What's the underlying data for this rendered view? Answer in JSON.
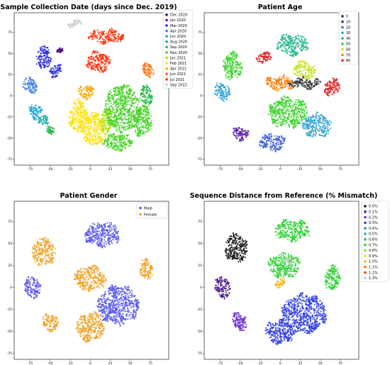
{
  "chart_data": [
    {
      "type": "scatter",
      "title": "Sample Collection Date (days since Dec. 2019)",
      "xlim": [
        -95,
        98
      ],
      "ylim": [
        -82,
        98
      ],
      "x_ticks": [
        "-75",
        "-50",
        "-25",
        "0",
        "25",
        "50",
        "75"
      ],
      "y_ticks": [
        "75",
        "50",
        "25",
        "0",
        "-25",
        "-50",
        "-75"
      ],
      "legend_position": "outside-right",
      "legend": [
        {
          "label": "Dec 2019",
          "color": "#4b0082"
        },
        {
          "label": "Jan 2020",
          "color": "#6a0dad"
        },
        {
          "label": "Mar 2020",
          "color": "#2a2ae0"
        },
        {
          "label": "Apr 2020",
          "color": "#3f7fe0"
        },
        {
          "label": "Jun 2020",
          "color": "#1fa3d8"
        },
        {
          "label": "Aug 2020",
          "color": "#18a8a0"
        },
        {
          "label": "Sep 2020",
          "color": "#21b84a"
        },
        {
          "label": "Nov 2020",
          "color": "#3fd21f"
        },
        {
          "label": "Jan 2021",
          "color": "#a8e01a"
        },
        {
          "label": "Feb 2021",
          "color": "#ffe000"
        },
        {
          "label": "Apr 2021",
          "color": "#ffa500"
        },
        {
          "label": "Jun 2021",
          "color": "#ff6a00"
        },
        {
          "label": "Jul 2021",
          "color": "#ff2a00"
        },
        {
          "label": "Sep 2021",
          "color": "#cccccc"
        }
      ],
      "clusters": [
        {
          "label": "Sep 2021",
          "x": -20,
          "y": 85,
          "rx": 9,
          "ry": 4
        },
        {
          "label": "Dec 2019",
          "x": -38,
          "y": 52,
          "rx": 4,
          "ry": 3
        },
        {
          "label": "Mar 2020",
          "x": -58,
          "y": 45,
          "rx": 9,
          "ry": 14
        },
        {
          "label": "Mar 2020",
          "x": -43,
          "y": 30,
          "rx": 7,
          "ry": 8
        },
        {
          "label": "Apr 2020",
          "x": -75,
          "y": 12,
          "rx": 9,
          "ry": 9
        },
        {
          "label": "Jun 2020",
          "x": -68,
          "y": -18,
          "rx": 8,
          "ry": 9
        },
        {
          "label": "Aug 2020",
          "x": -58,
          "y": -30,
          "rx": 6,
          "ry": 6
        },
        {
          "label": "Sep 2020",
          "x": -50,
          "y": -40,
          "rx": 5,
          "ry": 5
        },
        {
          "label": "Jul 2021",
          "x": 20,
          "y": 70,
          "rx": 22,
          "ry": 8
        },
        {
          "label": "Jul 2021",
          "x": 10,
          "y": 40,
          "rx": 15,
          "ry": 12
        },
        {
          "label": "Jun 2021",
          "x": 72,
          "y": 30,
          "rx": 7,
          "ry": 8
        },
        {
          "label": "Feb 2021",
          "x": -15,
          "y": -25,
          "rx": 12,
          "ry": 20
        },
        {
          "label": "Feb 2021",
          "x": 5,
          "y": -40,
          "rx": 14,
          "ry": 20
        },
        {
          "label": "Apr 2021",
          "x": -5,
          "y": 5,
          "rx": 10,
          "ry": 8
        },
        {
          "label": "Jan 2021",
          "x": 20,
          "y": -30,
          "rx": 8,
          "ry": 15
        },
        {
          "label": "Nov 2020",
          "x": 40,
          "y": -15,
          "rx": 22,
          "ry": 28
        },
        {
          "label": "Nov 2020",
          "x": 65,
          "y": -30,
          "rx": 12,
          "ry": 18
        },
        {
          "label": "Nov 2020",
          "x": 35,
          "y": -55,
          "rx": 18,
          "ry": 10
        },
        {
          "label": "Sep 2020",
          "x": 70,
          "y": 0,
          "rx": 8,
          "ry": 12
        }
      ]
    },
    {
      "type": "scatter",
      "title": "Patient Age",
      "xlim": [
        -95,
        98
      ],
      "ylim": [
        -82,
        98
      ],
      "x_ticks": [
        "-75",
        "-50",
        "-25",
        "0",
        "25",
        "50",
        "75"
      ],
      "y_ticks": [
        "75",
        "50",
        "25",
        "0",
        "-25",
        "-50",
        "-75"
      ],
      "legend_position": "top-right",
      "legend": [
        {
          "label": "0",
          "color": "#333333"
        },
        {
          "label": "10",
          "color": "#5a1aa8"
        },
        {
          "label": "20",
          "color": "#3b5ce0"
        },
        {
          "label": "30",
          "color": "#2aa0d8"
        },
        {
          "label": "40",
          "color": "#20b890"
        },
        {
          "label": "50",
          "color": "#3ad22a"
        },
        {
          "label": "60",
          "color": "#c8e020"
        },
        {
          "label": "70",
          "color": "#ff7a00"
        },
        {
          "label": "80",
          "color": "#e02020"
        }
      ],
      "clusters": [
        {
          "label": "80",
          "x": -20,
          "y": 45,
          "rx": 10,
          "ry": 6
        },
        {
          "label": "50",
          "x": -60,
          "y": 35,
          "rx": 12,
          "ry": 16
        },
        {
          "label": "30",
          "x": -72,
          "y": 5,
          "rx": 10,
          "ry": 10
        },
        {
          "label": "10",
          "x": -50,
          "y": -45,
          "rx": 10,
          "ry": 8
        },
        {
          "label": "40",
          "x": 15,
          "y": 60,
          "rx": 20,
          "ry": 12
        },
        {
          "label": "70",
          "x": 0,
          "y": 15,
          "rx": 18,
          "ry": 8
        },
        {
          "label": "60",
          "x": 30,
          "y": 30,
          "rx": 14,
          "ry": 10
        },
        {
          "label": "50",
          "x": 10,
          "y": -20,
          "rx": 25,
          "ry": 18
        },
        {
          "label": "20",
          "x": -10,
          "y": -55,
          "rx": 16,
          "ry": 10
        },
        {
          "label": "30",
          "x": 45,
          "y": -35,
          "rx": 18,
          "ry": 14
        },
        {
          "label": "80",
          "x": 65,
          "y": 10,
          "rx": 10,
          "ry": 10
        },
        {
          "label": "0",
          "x": 30,
          "y": 15,
          "rx": 20,
          "ry": 6
        }
      ]
    },
    {
      "type": "scatter",
      "title": "Patient Gender",
      "xlim": [
        -95,
        98
      ],
      "ylim": [
        -82,
        98
      ],
      "x_ticks": [
        "-75",
        "-50",
        "-25",
        "0",
        "25",
        "50",
        "75"
      ],
      "y_ticks": [
        "75",
        "50",
        "25",
        "0",
        "-25",
        "-50",
        "-75"
      ],
      "legend_position": "top-right",
      "legend": [
        {
          "label": "Male",
          "color": "#5555ee"
        },
        {
          "label": "Female",
          "color": "#f0a020"
        }
      ],
      "clusters": [
        {
          "label": "Female",
          "x": -58,
          "y": 40,
          "rx": 14,
          "ry": 16
        },
        {
          "label": "Male",
          "x": -72,
          "y": 0,
          "rx": 10,
          "ry": 12
        },
        {
          "label": "Female",
          "x": -50,
          "y": -40,
          "rx": 10,
          "ry": 10
        },
        {
          "label": "Male",
          "x": 15,
          "y": 60,
          "rx": 22,
          "ry": 14
        },
        {
          "label": "Female",
          "x": 0,
          "y": 10,
          "rx": 20,
          "ry": 14
        },
        {
          "label": "Male",
          "x": 35,
          "y": -20,
          "rx": 26,
          "ry": 22
        },
        {
          "label": "Female",
          "x": 0,
          "y": -45,
          "rx": 18,
          "ry": 16
        },
        {
          "label": "Female",
          "x": 70,
          "y": 20,
          "rx": 8,
          "ry": 12
        }
      ]
    },
    {
      "type": "scatter",
      "title": "Sequence Distance from Reference (% Mismatch)",
      "xlim": [
        -95,
        98
      ],
      "ylim": [
        -82,
        98
      ],
      "x_ticks": [
        "-75",
        "-50",
        "-25",
        "0",
        "25",
        "50",
        "75"
      ],
      "y_ticks": [
        "75",
        "50",
        "25",
        "0",
        "-25",
        "-50",
        "-75"
      ],
      "legend_position": "outside-right",
      "legend": [
        {
          "label": "0.0%",
          "color": "#111111"
        },
        {
          "label": "0.1%",
          "color": "#4b1a8a"
        },
        {
          "label": "0.2%",
          "color": "#6a2ad0"
        },
        {
          "label": "0.3%",
          "color": "#2a3ae0"
        },
        {
          "label": "0.4%",
          "color": "#2a8ae0"
        },
        {
          "label": "0.5%",
          "color": "#20b0c0"
        },
        {
          "label": "0.6%",
          "color": "#20b870"
        },
        {
          "label": "0.7%",
          "color": "#2ad030"
        },
        {
          "label": "0.8%",
          "color": "#8ae020"
        },
        {
          "label": "0.9%",
          "color": "#e8e020"
        },
        {
          "label": "1.0%",
          "color": "#ffb000"
        },
        {
          "label": "1.1%",
          "color": "#ff7000"
        },
        {
          "label": "1.2%",
          "color": "#ff3a00"
        },
        {
          "label": "1.3%",
          "color": "#cccccc"
        }
      ],
      "clusters": [
        {
          "label": "0.0%",
          "x": -55,
          "y": 45,
          "rx": 14,
          "ry": 16
        },
        {
          "label": "0.1%",
          "x": -72,
          "y": 0,
          "rx": 10,
          "ry": 12
        },
        {
          "label": "0.2%",
          "x": -50,
          "y": -38,
          "rx": 10,
          "ry": 10
        },
        {
          "label": "0.7%",
          "x": 15,
          "y": 65,
          "rx": 22,
          "ry": 12
        },
        {
          "label": "0.7%",
          "x": 5,
          "y": 25,
          "rx": 20,
          "ry": 14
        },
        {
          "label": "0.3%",
          "x": 30,
          "y": -30,
          "rx": 28,
          "ry": 22
        },
        {
          "label": "0.3%",
          "x": 0,
          "y": -50,
          "rx": 18,
          "ry": 14
        },
        {
          "label": "0.7%",
          "x": 65,
          "y": 10,
          "rx": 10,
          "ry": 14
        },
        {
          "label": "1.0%",
          "x": 0,
          "y": 5,
          "rx": 6,
          "ry": 5
        },
        {
          "label": "1.3%",
          "x": 10,
          "y": 30,
          "rx": 5,
          "ry": 4
        }
      ]
    }
  ]
}
